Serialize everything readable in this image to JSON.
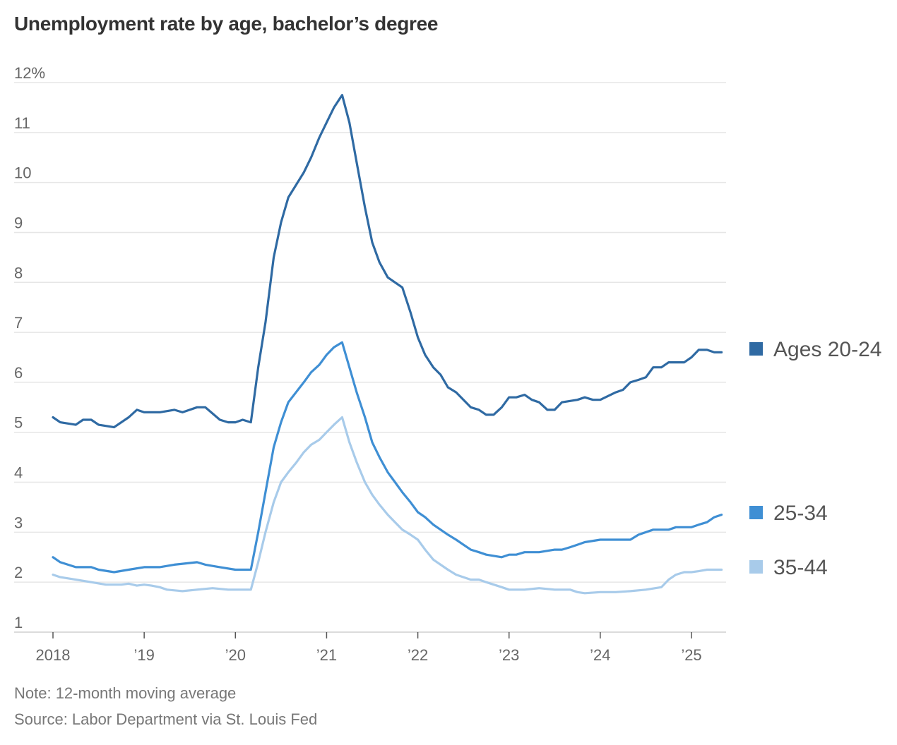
{
  "chart_data": {
    "type": "line",
    "title": "Unemployment rate by age, bachelor’s degree",
    "xlabel": "",
    "ylabel": "",
    "ylim": [
      1,
      12
    ],
    "yticks": [
      {
        "value": 1,
        "label": "1"
      },
      {
        "value": 2,
        "label": "2"
      },
      {
        "value": 3,
        "label": "3"
      },
      {
        "value": 4,
        "label": "4"
      },
      {
        "value": 5,
        "label": "5"
      },
      {
        "value": 6,
        "label": "6"
      },
      {
        "value": 7,
        "label": "7"
      },
      {
        "value": 8,
        "label": "8"
      },
      {
        "value": 9,
        "label": "9"
      },
      {
        "value": 10,
        "label": "10"
      },
      {
        "value": 11,
        "label": "11"
      },
      {
        "value": 12,
        "label": "12%"
      }
    ],
    "xlim": [
      2018.0,
      2025.42
    ],
    "xticks": [
      {
        "value": 2018,
        "label": "2018"
      },
      {
        "value": 2019,
        "label": "’19"
      },
      {
        "value": 2020,
        "label": "’20"
      },
      {
        "value": 2021,
        "label": "’21"
      },
      {
        "value": 2022,
        "label": "’22"
      },
      {
        "value": 2023,
        "label": "’23"
      },
      {
        "value": 2024,
        "label": "’24"
      },
      {
        "value": 2025,
        "label": "’25"
      }
    ],
    "grid": true,
    "legend": "right, labels at series ends",
    "series": [
      {
        "name": "Ages 20-24",
        "color": "#2f6aa3",
        "points": [
          [
            2018.0,
            5.3
          ],
          [
            2018.08,
            5.2
          ],
          [
            2018.25,
            5.15
          ],
          [
            2018.33,
            5.25
          ],
          [
            2018.42,
            5.25
          ],
          [
            2018.5,
            5.15
          ],
          [
            2018.67,
            5.1
          ],
          [
            2018.83,
            5.3
          ],
          [
            2018.92,
            5.45
          ],
          [
            2019.0,
            5.4
          ],
          [
            2019.17,
            5.4
          ],
          [
            2019.33,
            5.45
          ],
          [
            2019.42,
            5.4
          ],
          [
            2019.58,
            5.5
          ],
          [
            2019.67,
            5.5
          ],
          [
            2019.83,
            5.25
          ],
          [
            2019.92,
            5.2
          ],
          [
            2020.0,
            5.2
          ],
          [
            2020.08,
            5.25
          ],
          [
            2020.17,
            5.2
          ],
          [
            2020.25,
            6.3
          ],
          [
            2020.33,
            7.2
          ],
          [
            2020.42,
            8.5
          ],
          [
            2020.5,
            9.2
          ],
          [
            2020.58,
            9.7
          ],
          [
            2020.75,
            10.2
          ],
          [
            2020.83,
            10.5
          ],
          [
            2020.92,
            10.9
          ],
          [
            2021.0,
            11.2
          ],
          [
            2021.08,
            11.5
          ],
          [
            2021.17,
            11.75
          ],
          [
            2021.25,
            11.2
          ],
          [
            2021.33,
            10.4
          ],
          [
            2021.42,
            9.5
          ],
          [
            2021.5,
            8.8
          ],
          [
            2021.58,
            8.4
          ],
          [
            2021.67,
            8.1
          ],
          [
            2021.75,
            8.0
          ],
          [
            2021.83,
            7.9
          ],
          [
            2021.92,
            7.4
          ],
          [
            2022.0,
            6.9
          ],
          [
            2022.08,
            6.55
          ],
          [
            2022.17,
            6.3
          ],
          [
            2022.25,
            6.15
          ],
          [
            2022.33,
            5.9
          ],
          [
            2022.42,
            5.8
          ],
          [
            2022.58,
            5.5
          ],
          [
            2022.67,
            5.45
          ],
          [
            2022.75,
            5.35
          ],
          [
            2022.83,
            5.35
          ],
          [
            2022.92,
            5.5
          ],
          [
            2023.0,
            5.7
          ],
          [
            2023.08,
            5.7
          ],
          [
            2023.17,
            5.75
          ],
          [
            2023.25,
            5.65
          ],
          [
            2023.33,
            5.6
          ],
          [
            2023.42,
            5.45
          ],
          [
            2023.5,
            5.45
          ],
          [
            2023.58,
            5.6
          ],
          [
            2023.75,
            5.65
          ],
          [
            2023.83,
            5.7
          ],
          [
            2023.92,
            5.65
          ],
          [
            2024.0,
            5.65
          ],
          [
            2024.17,
            5.8
          ],
          [
            2024.25,
            5.85
          ],
          [
            2024.33,
            6.0
          ],
          [
            2024.42,
            6.05
          ],
          [
            2024.5,
            6.1
          ],
          [
            2024.58,
            6.3
          ],
          [
            2024.67,
            6.3
          ],
          [
            2024.75,
            6.4
          ],
          [
            2024.83,
            6.4
          ],
          [
            2024.92,
            6.4
          ],
          [
            2025.0,
            6.5
          ],
          [
            2025.08,
            6.65
          ],
          [
            2025.17,
            6.65
          ],
          [
            2025.25,
            6.6
          ],
          [
            2025.33,
            6.6
          ]
        ]
      },
      {
        "name": "25-34",
        "color": "#3f8fd4",
        "points": [
          [
            2018.0,
            2.5
          ],
          [
            2018.08,
            2.4
          ],
          [
            2018.25,
            2.3
          ],
          [
            2018.33,
            2.3
          ],
          [
            2018.42,
            2.3
          ],
          [
            2018.5,
            2.25
          ],
          [
            2018.67,
            2.2
          ],
          [
            2018.83,
            2.25
          ],
          [
            2019.0,
            2.3
          ],
          [
            2019.17,
            2.3
          ],
          [
            2019.33,
            2.35
          ],
          [
            2019.58,
            2.4
          ],
          [
            2019.67,
            2.35
          ],
          [
            2019.83,
            2.3
          ],
          [
            2020.0,
            2.25
          ],
          [
            2020.17,
            2.25
          ],
          [
            2020.25,
            3.0
          ],
          [
            2020.33,
            3.8
          ],
          [
            2020.42,
            4.7
          ],
          [
            2020.5,
            5.2
          ],
          [
            2020.58,
            5.6
          ],
          [
            2020.75,
            6.0
          ],
          [
            2020.83,
            6.2
          ],
          [
            2020.92,
            6.35
          ],
          [
            2021.0,
            6.55
          ],
          [
            2021.08,
            6.7
          ],
          [
            2021.17,
            6.8
          ],
          [
            2021.25,
            6.3
          ],
          [
            2021.33,
            5.8
          ],
          [
            2021.42,
            5.3
          ],
          [
            2021.5,
            4.8
          ],
          [
            2021.58,
            4.5
          ],
          [
            2021.67,
            4.2
          ],
          [
            2021.75,
            4.0
          ],
          [
            2021.83,
            3.8
          ],
          [
            2021.92,
            3.6
          ],
          [
            2022.0,
            3.4
          ],
          [
            2022.08,
            3.3
          ],
          [
            2022.17,
            3.15
          ],
          [
            2022.33,
            2.95
          ],
          [
            2022.42,
            2.85
          ],
          [
            2022.5,
            2.75
          ],
          [
            2022.58,
            2.65
          ],
          [
            2022.67,
            2.6
          ],
          [
            2022.75,
            2.55
          ],
          [
            2022.92,
            2.5
          ],
          [
            2023.0,
            2.55
          ],
          [
            2023.08,
            2.55
          ],
          [
            2023.17,
            2.6
          ],
          [
            2023.25,
            2.6
          ],
          [
            2023.33,
            2.6
          ],
          [
            2023.5,
            2.65
          ],
          [
            2023.58,
            2.65
          ],
          [
            2023.67,
            2.7
          ],
          [
            2023.75,
            2.75
          ],
          [
            2023.83,
            2.8
          ],
          [
            2024.0,
            2.85
          ],
          [
            2024.17,
            2.85
          ],
          [
            2024.33,
            2.85
          ],
          [
            2024.42,
            2.95
          ],
          [
            2024.58,
            3.05
          ],
          [
            2024.67,
            3.05
          ],
          [
            2024.75,
            3.05
          ],
          [
            2024.83,
            3.1
          ],
          [
            2024.92,
            3.1
          ],
          [
            2025.0,
            3.1
          ],
          [
            2025.08,
            3.15
          ],
          [
            2025.17,
            3.2
          ],
          [
            2025.25,
            3.3
          ],
          [
            2025.33,
            3.35
          ]
        ]
      },
      {
        "name": "35-44",
        "color": "#a8cbea",
        "points": [
          [
            2018.0,
            2.15
          ],
          [
            2018.08,
            2.1
          ],
          [
            2018.25,
            2.05
          ],
          [
            2018.42,
            2.0
          ],
          [
            2018.58,
            1.95
          ],
          [
            2018.75,
            1.95
          ],
          [
            2018.83,
            1.97
          ],
          [
            2018.92,
            1.93
          ],
          [
            2019.0,
            1.95
          ],
          [
            2019.08,
            1.93
          ],
          [
            2019.17,
            1.9
          ],
          [
            2019.25,
            1.85
          ],
          [
            2019.42,
            1.82
          ],
          [
            2019.58,
            1.85
          ],
          [
            2019.75,
            1.88
          ],
          [
            2019.92,
            1.85
          ],
          [
            2020.0,
            1.85
          ],
          [
            2020.17,
            1.85
          ],
          [
            2020.25,
            2.4
          ],
          [
            2020.33,
            3.0
          ],
          [
            2020.42,
            3.6
          ],
          [
            2020.5,
            4.0
          ],
          [
            2020.58,
            4.2
          ],
          [
            2020.67,
            4.4
          ],
          [
            2020.75,
            4.6
          ],
          [
            2020.83,
            4.75
          ],
          [
            2020.92,
            4.85
          ],
          [
            2021.0,
            5.0
          ],
          [
            2021.08,
            5.15
          ],
          [
            2021.17,
            5.3
          ],
          [
            2021.25,
            4.8
          ],
          [
            2021.33,
            4.4
          ],
          [
            2021.42,
            4.0
          ],
          [
            2021.5,
            3.75
          ],
          [
            2021.58,
            3.55
          ],
          [
            2021.67,
            3.35
          ],
          [
            2021.75,
            3.2
          ],
          [
            2021.83,
            3.05
          ],
          [
            2021.92,
            2.95
          ],
          [
            2022.0,
            2.85
          ],
          [
            2022.08,
            2.65
          ],
          [
            2022.17,
            2.45
          ],
          [
            2022.33,
            2.25
          ],
          [
            2022.42,
            2.15
          ],
          [
            2022.58,
            2.05
          ],
          [
            2022.67,
            2.05
          ],
          [
            2022.75,
            2.0
          ],
          [
            2022.92,
            1.9
          ],
          [
            2023.0,
            1.85
          ],
          [
            2023.17,
            1.85
          ],
          [
            2023.33,
            1.88
          ],
          [
            2023.5,
            1.85
          ],
          [
            2023.67,
            1.85
          ],
          [
            2023.75,
            1.8
          ],
          [
            2023.83,
            1.78
          ],
          [
            2024.0,
            1.8
          ],
          [
            2024.17,
            1.8
          ],
          [
            2024.33,
            1.82
          ],
          [
            2024.5,
            1.85
          ],
          [
            2024.67,
            1.9
          ],
          [
            2024.75,
            2.05
          ],
          [
            2024.83,
            2.15
          ],
          [
            2024.92,
            2.2
          ],
          [
            2025.0,
            2.2
          ],
          [
            2025.08,
            2.22
          ],
          [
            2025.17,
            2.25
          ],
          [
            2025.25,
            2.25
          ],
          [
            2025.33,
            2.25
          ]
        ]
      }
    ]
  },
  "footer": {
    "note": "Note: 12-month moving average",
    "source": "Source: Labor Department via St. Louis Fed"
  }
}
